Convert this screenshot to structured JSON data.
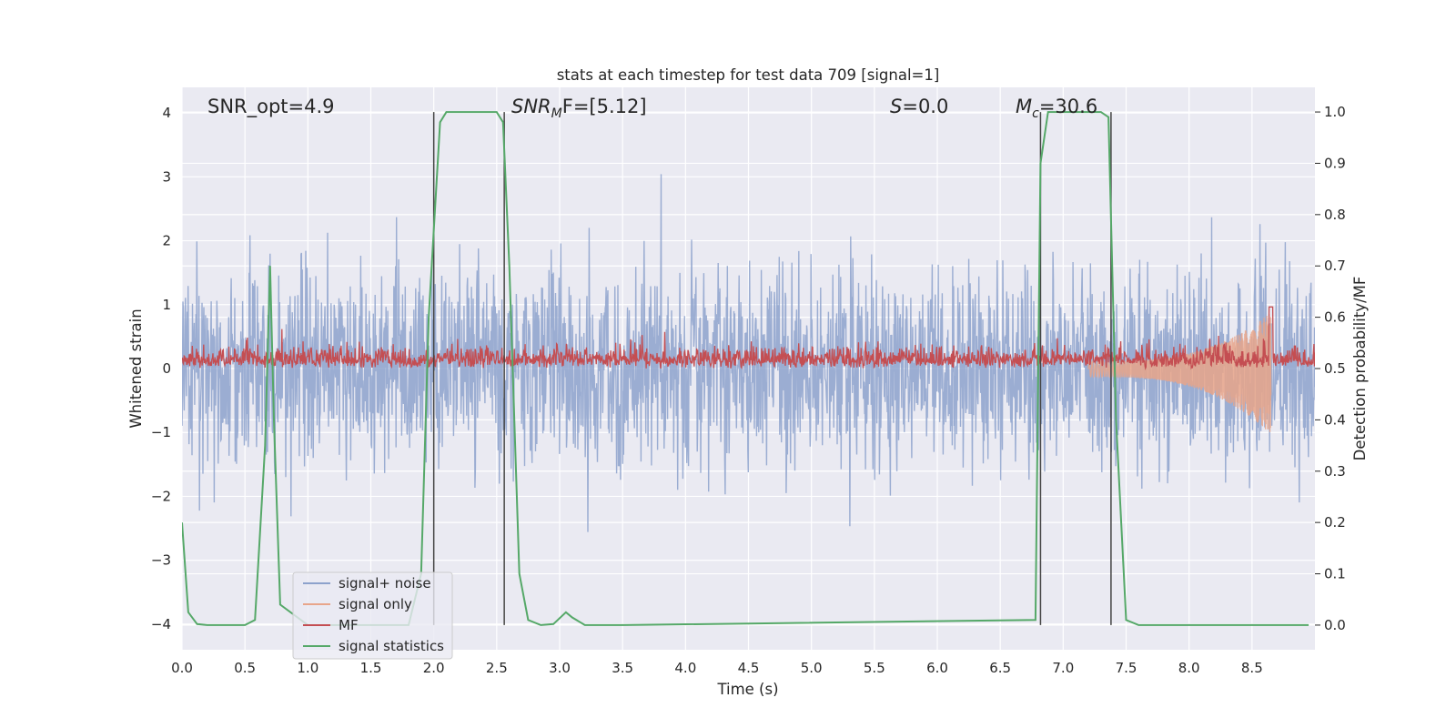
{
  "chart_data": {
    "type": "line",
    "title": "stats at each timestep for test data 709 [signal=1]",
    "xlabel": "Time (s)",
    "ylabel": "Whitened strain",
    "y2label": "Detection probability/MF",
    "xlim": [
      0.0,
      9.0
    ],
    "ylim": [
      -4.4,
      4.4
    ],
    "y2lim": [
      -0.048,
      1.048
    ],
    "xticks": [
      "0.0",
      "0.5",
      "1.0",
      "1.5",
      "2.0",
      "2.5",
      "3.0",
      "3.5",
      "4.0",
      "4.5",
      "5.0",
      "5.5",
      "6.0",
      "6.5",
      "7.0",
      "7.5",
      "8.0",
      "8.5"
    ],
    "xtick_values": [
      0.0,
      0.5,
      1.0,
      1.5,
      2.0,
      2.5,
      3.0,
      3.5,
      4.0,
      4.5,
      5.0,
      5.5,
      6.0,
      6.5,
      7.0,
      7.5,
      8.0,
      8.5
    ],
    "yticks": [
      "4",
      "3",
      "2",
      "1",
      "0",
      "−1",
      "−2",
      "−3",
      "−4"
    ],
    "ytick_values": [
      4,
      3,
      2,
      1,
      0,
      -1,
      -2,
      -3,
      -4
    ],
    "y2ticks": [
      "1.0",
      "0.9",
      "0.8",
      "0.7",
      "0.6",
      "0.5",
      "0.4",
      "0.3",
      "0.2",
      "0.1",
      "0.0"
    ],
    "y2tick_values": [
      1.0,
      0.9,
      0.8,
      0.7,
      0.6,
      0.5,
      0.4,
      0.3,
      0.2,
      0.1,
      0.0
    ],
    "annotations": {
      "snr_opt": "SNR_opt=4.9",
      "snr_mf_main": "SNR",
      "snr_mf_sub": "M",
      "snr_mf_rest": "F=[5.12]",
      "s_main": "S",
      "s_rest": "=0.0",
      "mc_main": "M",
      "mc_sub": "c",
      "mc_rest": "=30.6"
    },
    "vertical_lines_x": [
      2.0,
      2.56,
      6.82,
      7.38
    ],
    "legend": {
      "placement": "lower-left",
      "entries": [
        "signal+ noise",
        "signal only",
        "MF",
        "signal statistics"
      ]
    },
    "colors": {
      "signal_noise": "#8da2cc",
      "signal_only": "#e8a58a",
      "mf": "#c44e52",
      "signal_statistics": "#55a868",
      "vlines": "#444444",
      "background": "#eaeaf2",
      "grid": "#ffffff"
    },
    "series": [
      {
        "name": "signal+ noise",
        "axis": "left",
        "description": "dense noise trace, roughly within ±3 with spikes to ±4"
      },
      {
        "name": "signal only",
        "axis": "left",
        "description": "chirp starting ~7.3 s growing to about ±1 near 8.65 s"
      },
      {
        "name": "MF",
        "axis": "right",
        "description": "matched filter output mostly between 0.5 and 0.58, peak ~0.62 at 8.65 s"
      },
      {
        "name": "signal statistics",
        "axis": "right",
        "x": [
          0.0,
          0.05,
          0.12,
          0.2,
          0.5,
          0.58,
          0.66,
          0.7,
          0.73,
          0.78,
          1.0,
          1.5,
          1.8,
          1.9,
          1.96,
          2.05,
          2.1,
          2.5,
          2.55,
          2.6,
          2.68,
          2.75,
          2.85,
          2.95,
          3.05,
          3.1,
          3.2,
          3.5,
          6.78,
          6.82,
          6.88,
          6.93,
          7.3,
          7.36,
          7.42,
          7.5,
          7.6,
          8.95
        ],
        "values": [
          0.2,
          0.025,
          0.002,
          0.0,
          0.0,
          0.01,
          0.35,
          0.7,
          0.4,
          0.04,
          0.0,
          0.0,
          0.0,
          0.1,
          0.6,
          0.98,
          1.0,
          1.0,
          0.98,
          0.7,
          0.1,
          0.01,
          0.0,
          0.002,
          0.025,
          0.015,
          0.0,
          0.0,
          0.01,
          0.9,
          1.0,
          1.0,
          1.0,
          0.99,
          0.4,
          0.01,
          0.0,
          0.0
        ]
      }
    ]
  }
}
